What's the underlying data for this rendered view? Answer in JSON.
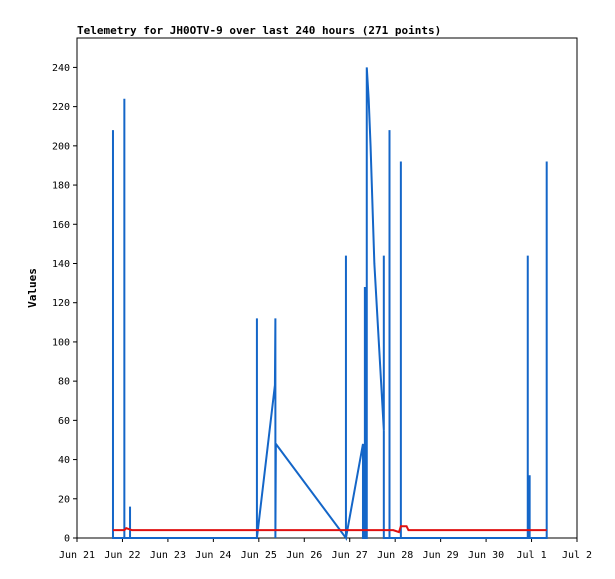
{
  "chart_data": {
    "type": "line",
    "title": "Telemetry for JH0OTV-9 over last 240 hours (271 points)",
    "ylabel": "Values",
    "xlabel": "",
    "grid": false,
    "ylim": [
      0,
      255
    ],
    "yticks": [
      0,
      20,
      40,
      60,
      80,
      100,
      120,
      140,
      160,
      180,
      200,
      220,
      240
    ],
    "xlim": [
      "2023-06-21",
      "2023-07-02"
    ],
    "xticks": [
      {
        "date": "2023-06-21",
        "label": "Jun 21"
      },
      {
        "date": "2023-06-22",
        "label": "Jun 22"
      },
      {
        "date": "2023-06-23",
        "label": "Jun 23"
      },
      {
        "date": "2023-06-24",
        "label": "Jun 24"
      },
      {
        "date": "2023-06-25",
        "label": "Jun 25"
      },
      {
        "date": "2023-06-26",
        "label": "Jun 26"
      },
      {
        "date": "2023-06-27",
        "label": "Jun 27"
      },
      {
        "date": "2023-06-28",
        "label": "Jun 28"
      },
      {
        "date": "2023-06-29",
        "label": "Jun 29"
      },
      {
        "date": "2023-06-30",
        "label": "Jun 30"
      },
      {
        "date": "2023-07-01",
        "label": "Jul 1"
      },
      {
        "date": "2023-07-02",
        "label": "Jul 2"
      }
    ],
    "series": [
      {
        "color": "#1466c8",
        "points": [
          [
            "2023-06-21 19:00",
            0
          ],
          [
            "2023-06-21 19:00",
            208
          ],
          [
            "2023-06-21 19:00",
            0
          ],
          [
            "2023-06-22 01:00",
            0
          ],
          [
            "2023-06-22 01:00",
            224
          ],
          [
            "2023-06-22 01:00",
            0
          ],
          [
            "2023-06-22 04:00",
            0
          ],
          [
            "2023-06-22 04:00",
            16
          ],
          [
            "2023-06-22 04:00",
            0
          ],
          [
            "2023-06-24 23:00",
            0
          ],
          [
            "2023-06-24 23:00",
            112
          ],
          [
            "2023-06-24 23:00",
            0
          ],
          [
            "2023-06-25 08:30",
            78
          ],
          [
            "2023-06-25 08:45",
            112
          ],
          [
            "2023-06-25 08:45",
            0
          ],
          [
            "2023-06-25 09:00",
            48
          ],
          [
            "2023-06-26 22:00",
            0
          ],
          [
            "2023-06-26 22:00",
            144
          ],
          [
            "2023-06-26 22:00",
            0
          ],
          [
            "2023-06-27 07:00",
            48
          ],
          [
            "2023-06-27 07:00",
            0
          ],
          [
            "2023-06-27 08:00",
            0
          ],
          [
            "2023-06-27 08:00",
            128
          ],
          [
            "2023-06-27 08:00",
            0
          ],
          [
            "2023-06-27 09:00",
            0
          ],
          [
            "2023-06-27 09:00",
            240
          ],
          [
            "2023-06-27 10:00",
            224
          ],
          [
            "2023-06-27 11:00",
            200
          ],
          [
            "2023-06-27 13:00",
            140
          ],
          [
            "2023-06-27 18:00",
            55
          ],
          [
            "2023-06-27 18:00",
            144
          ],
          [
            "2023-06-27 18:00",
            0
          ],
          [
            "2023-06-27 21:00",
            0
          ],
          [
            "2023-06-27 21:00",
            208
          ],
          [
            "2023-06-27 21:00",
            0
          ],
          [
            "2023-06-28 03:00",
            0
          ],
          [
            "2023-06-28 03:00",
            192
          ],
          [
            "2023-06-28 03:00",
            0
          ],
          [
            "2023-06-30 22:00",
            0
          ],
          [
            "2023-06-30 22:00",
            144
          ],
          [
            "2023-06-30 22:00",
            0
          ],
          [
            "2023-06-30 23:00",
            0
          ],
          [
            "2023-06-30 23:00",
            32
          ],
          [
            "2023-06-30 23:00",
            0
          ],
          [
            "2023-07-01 08:00",
            0
          ],
          [
            "2023-07-01 08:00",
            192
          ],
          [
            "2023-07-01 08:00",
            0
          ]
        ]
      },
      {
        "color": "#e01010",
        "points": [
          [
            "2023-06-21 19:00",
            4
          ],
          [
            "2023-06-22 01:00",
            4
          ],
          [
            "2023-06-22 02:00",
            5
          ],
          [
            "2023-06-22 05:00",
            4
          ],
          [
            "2023-06-27 23:00",
            4
          ],
          [
            "2023-06-28 02:00",
            3
          ],
          [
            "2023-06-28 03:00",
            6
          ],
          [
            "2023-06-28 06:00",
            6
          ],
          [
            "2023-06-28 07:00",
            4
          ],
          [
            "2023-07-01 08:00",
            4
          ]
        ]
      }
    ]
  }
}
